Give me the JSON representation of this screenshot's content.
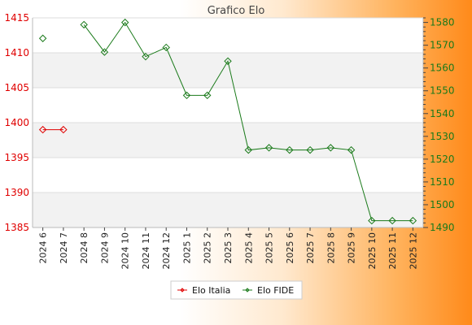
{
  "chart_data": {
    "type": "line",
    "title": "Grafico Elo",
    "categories": [
      "2024 6",
      "2024 7",
      "2024 8",
      "2024 9",
      "2024 10",
      "2024 11",
      "2024 12",
      "2025 1",
      "2025 2",
      "2025 3",
      "2025 4",
      "2025 5",
      "2025 6",
      "2025 7",
      "2025 8",
      "2025 9",
      "2025 10",
      "2025 11",
      "2025 12"
    ],
    "y_left": {
      "range": [
        1385,
        1415
      ],
      "ticks": [
        1385,
        1390,
        1395,
        1400,
        1405,
        1410,
        1415
      ],
      "color": "#e00000"
    },
    "y_right": {
      "range": [
        1490,
        1582
      ],
      "ticks": [
        1490,
        1500,
        1510,
        1520,
        1530,
        1540,
        1550,
        1560,
        1570,
        1580
      ],
      "color": "#1a7a1a"
    },
    "grid": true,
    "legend_position": "bottom",
    "series": [
      {
        "name": "Elo Italia",
        "axis": "left",
        "color": "#e00000",
        "values": [
          1399,
          1399,
          null,
          null,
          null,
          null,
          null,
          null,
          null,
          null,
          null,
          null,
          null,
          null,
          null,
          null,
          null,
          null,
          null
        ]
      },
      {
        "name": "Elo FIDE",
        "axis": "right",
        "color": "#1a7a1a",
        "values": [
          1573,
          null,
          1579,
          1567,
          1580,
          1565,
          1569,
          1548,
          1548,
          1563,
          1524,
          1525,
          1524,
          1524,
          1525,
          1524,
          1493,
          1493,
          1493
        ]
      }
    ]
  }
}
